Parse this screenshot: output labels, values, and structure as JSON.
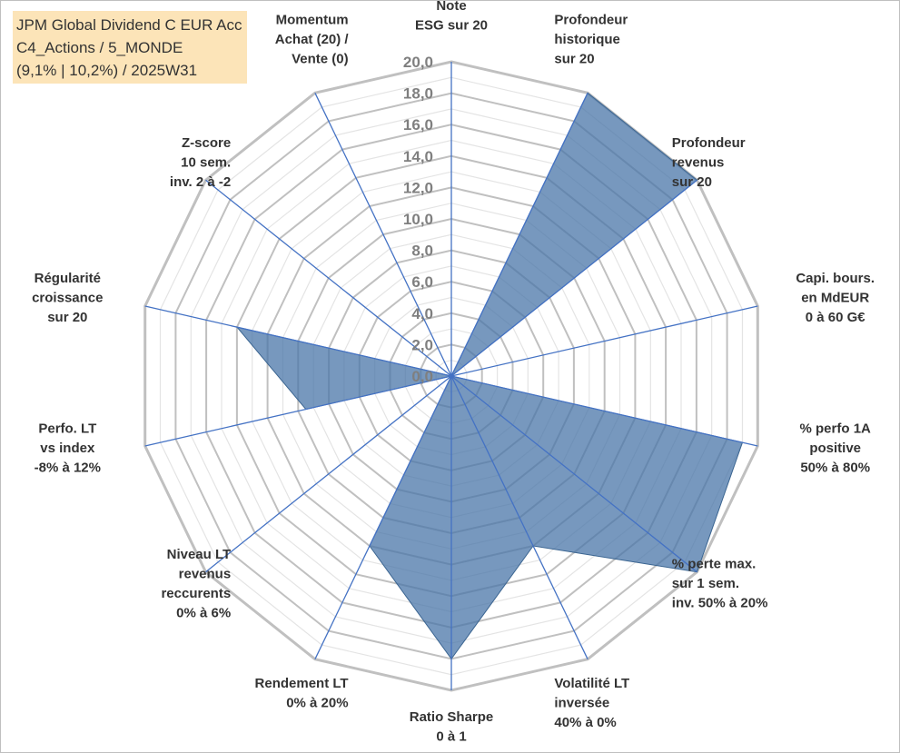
{
  "chart_data": {
    "type": "radar",
    "title_lines": [
      "JPM Global Dividend C EUR Acc",
      "C4_Actions / 5_MONDE",
      "(9,1% | 10,2%) / 2025W31"
    ],
    "axes": [
      {
        "lines": [
          "Note",
          "ESG sur 20"
        ]
      },
      {
        "lines": [
          "Profondeur",
          "historique",
          "sur 20"
        ]
      },
      {
        "lines": [
          "Profondeur",
          "revenus",
          "sur 20"
        ]
      },
      {
        "lines": [
          "Capi. bours.",
          "en MdEUR",
          "0 à 60 G€"
        ]
      },
      {
        "lines": [
          "% perfo 1A",
          "positive",
          "50% à 80%"
        ]
      },
      {
        "lines": [
          "% perte max.",
          "sur 1 sem.",
          "inv. 50% à 20%"
        ]
      },
      {
        "lines": [
          "Volatilité LT",
          "inversée",
          "40% à 0%"
        ]
      },
      {
        "lines": [
          "Ratio Sharpe",
          "0 à 1"
        ]
      },
      {
        "lines": [
          "Rendement LT",
          "0% à 20%"
        ]
      },
      {
        "lines": [
          "Niveau LT",
          "revenus",
          "reccurents",
          "0% à 6%"
        ]
      },
      {
        "lines": [
          "Perfo. LT",
          "vs index",
          "-8% à 12%"
        ]
      },
      {
        "lines": [
          "Régularité",
          "croissance",
          "sur 20"
        ]
      },
      {
        "lines": [
          "Z-score",
          "10 sem.",
          "inv. 2 à -2"
        ]
      },
      {
        "lines": [
          "Momentum",
          "Achat (20) /",
          "Vente (0)"
        ]
      }
    ],
    "values": [
      0,
      20,
      20,
      0,
      19,
      20,
      12,
      18,
      12,
      0,
      9.5,
      14,
      0,
      0
    ],
    "rlim": [
      0,
      20
    ],
    "ticks": [
      "0,0",
      "2,0",
      "4,0",
      "6,0",
      "8,0",
      "10,0",
      "12,0",
      "14,0",
      "16,0",
      "18,0",
      "20,0"
    ],
    "grid": true,
    "colors": {
      "fill": "#4a76a8",
      "fill_opacity": 0.75,
      "axis_line": "#4472c4",
      "grid_major": "#c0c0c0",
      "grid_minor": "#e4e4e4",
      "title_bg": "#fce4b8"
    }
  }
}
